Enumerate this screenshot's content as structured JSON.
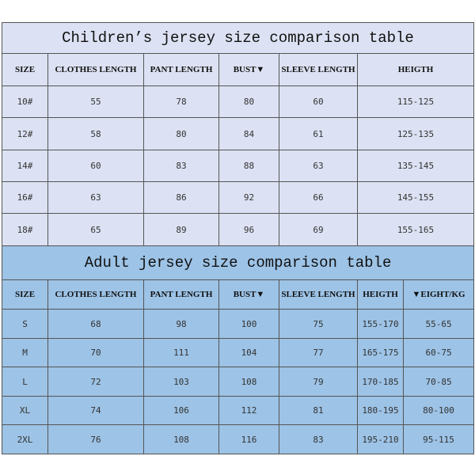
{
  "children": {
    "title": "Children’s jersey size comparison table",
    "headers": [
      "SIZE",
      "CLOTHES LENGTH",
      "PANT LENGTH",
      "BUST▼",
      "SLEEVE LENGTH",
      "HEIGTH"
    ],
    "rows": [
      [
        "10#",
        "55",
        "78",
        "80",
        "60",
        "115-125"
      ],
      [
        "12#",
        "58",
        "80",
        "84",
        "61",
        "125-135"
      ],
      [
        "14#",
        "60",
        "83",
        "88",
        "63",
        "135-145"
      ],
      [
        "16#",
        "63",
        "86",
        "92",
        "66",
        "145-155"
      ],
      [
        "18#",
        "65",
        "89",
        "96",
        "69",
        "155-165"
      ]
    ]
  },
  "adult": {
    "title": "Adult jersey size comparison table",
    "headers": [
      "SIZE",
      "CLOTHES LENGTH",
      "PANT LENGTH",
      "BUST▼",
      "SLEEVE LENGTH",
      "HEIGTH",
      "▼EIGHT/KG"
    ],
    "rows": [
      [
        "S",
        "68",
        "98",
        "100",
        "75",
        "155-170",
        "55-65"
      ],
      [
        "M",
        "70",
        "111",
        "104",
        "77",
        "165-175",
        "60-75"
      ],
      [
        "L",
        "72",
        "103",
        "108",
        "79",
        "170-185",
        "70-85"
      ],
      [
        "XL",
        "74",
        "106",
        "112",
        "81",
        "180-195",
        "80-100"
      ],
      [
        "2XL",
        "76",
        "108",
        "116",
        "83",
        "195-210",
        "95-115"
      ]
    ]
  },
  "colors": {
    "children_bg": "#dce2f3",
    "adult_bg": "#9dc3e6"
  }
}
